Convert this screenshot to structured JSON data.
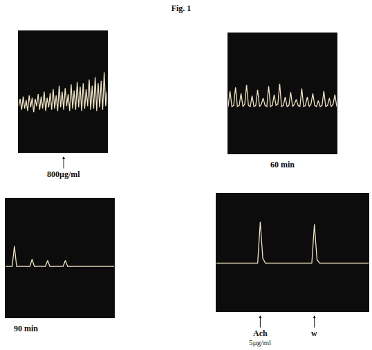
{
  "title": "Fig. 1",
  "chart_data": [
    {
      "type": "line",
      "color": "#efe4c4",
      "tick_labels": false,
      "grid": false,
      "xlim": [
        0,
        59
      ],
      "ylim": [
        0,
        100
      ],
      "values": [
        38,
        44,
        35,
        46,
        36,
        43,
        34,
        47,
        37,
        45,
        33,
        44,
        38,
        48,
        35,
        46,
        36,
        50,
        34,
        45,
        37,
        49,
        35,
        52,
        36,
        47,
        34,
        55,
        37,
        50,
        35,
        53,
        38,
        48,
        34,
        56,
        36,
        51,
        35,
        58,
        37,
        54,
        34,
        57,
        36,
        52,
        38,
        60,
        35,
        55,
        36,
        62,
        34,
        57,
        37,
        59,
        35,
        66,
        38,
        50
      ],
      "annotations": [
        {
          "x": 30,
          "text": "800µg/ml"
        }
      ]
    },
    {
      "type": "line",
      "color": "#efe4c4",
      "tick_labels": false,
      "grid": false,
      "xlim": [
        0,
        59
      ],
      "ylim": [
        0,
        100
      ],
      "caption": "60 min",
      "values": [
        39,
        52,
        39,
        40,
        55,
        39,
        40,
        50,
        39,
        41,
        57,
        40,
        39,
        48,
        39,
        40,
        53,
        39,
        41,
        46,
        40,
        39,
        56,
        39,
        40,
        49,
        40,
        41,
        58,
        39,
        40,
        47,
        39,
        40,
        51,
        39,
        41,
        45,
        40,
        39,
        54,
        39,
        40,
        47,
        39,
        41,
        50,
        40,
        39,
        44,
        39,
        40,
        52,
        39,
        40,
        46,
        39,
        41,
        49,
        39
      ]
    },
    {
      "type": "line",
      "color": "#efe4c4",
      "tick_labels": false,
      "grid": false,
      "xlim": [
        0,
        49
      ],
      "ylim": [
        0,
        100
      ],
      "caption": "90 min",
      "values": [
        43,
        43,
        43,
        43,
        60,
        43,
        43,
        43,
        43,
        43,
        43,
        43,
        49,
        43,
        43,
        43,
        43,
        43,
        43,
        48,
        43,
        43,
        43,
        43,
        43,
        43,
        43,
        48,
        43,
        43,
        43,
        43,
        43,
        43,
        43,
        43,
        43,
        43,
        43,
        43,
        43,
        43,
        43,
        43,
        43,
        43,
        43,
        43,
        43,
        43
      ]
    },
    {
      "type": "line",
      "color": "#efe4c4",
      "tick_labels": false,
      "grid": false,
      "xlim": [
        0,
        59
      ],
      "ylim": [
        0,
        100
      ],
      "values": [
        41,
        41,
        41,
        41,
        41,
        41,
        41,
        41,
        41,
        41,
        41,
        41,
        41,
        41,
        41,
        41,
        41,
        76,
        45,
        41,
        41,
        41,
        41,
        41,
        41,
        41,
        41,
        41,
        41,
        41,
        41,
        41,
        41,
        41,
        41,
        41,
        41,
        41,
        74,
        44,
        41,
        41,
        41,
        41,
        41,
        41,
        41,
        41,
        41,
        41,
        41,
        41,
        41,
        41,
        41,
        41,
        41,
        41,
        41,
        41
      ],
      "annotations": [
        {
          "x": 17,
          "text": "Ach",
          "dose": "5µg/ml"
        },
        {
          "x": 38,
          "text": "w"
        }
      ]
    }
  ]
}
